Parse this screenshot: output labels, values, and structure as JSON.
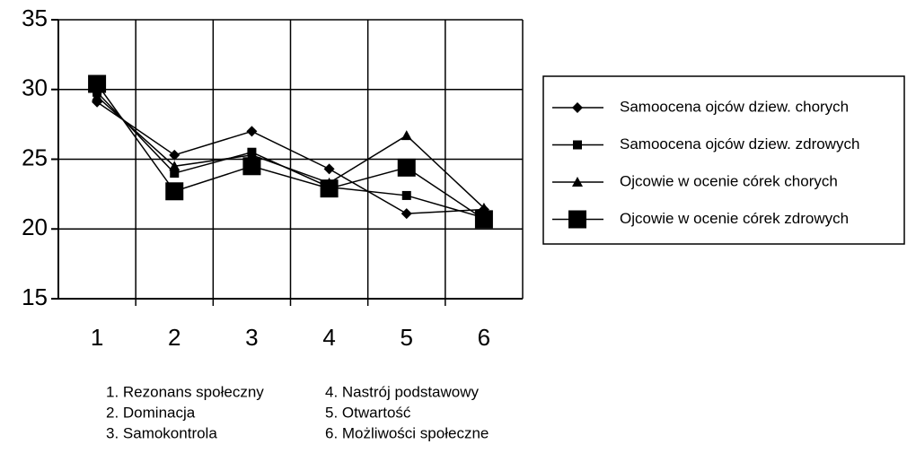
{
  "chart_data": {
    "type": "line",
    "categories": [
      "1",
      "2",
      "3",
      "4",
      "5",
      "6"
    ],
    "series": [
      {
        "name": "Samoocena ojców dziew. chorych",
        "color": "#000000",
        "marker": "diamond",
        "values": [
          29.1,
          25.3,
          27.0,
          24.3,
          21.1,
          21.4
        ]
      },
      {
        "name": "Samoocena ojców dziew. zdrowych",
        "color": "#000000",
        "marker": "square",
        "values": [
          29.8,
          24.0,
          25.5,
          23.0,
          22.4,
          20.8
        ]
      },
      {
        "name": "Ojcowie w ocenie córek chorych",
        "color": "#000000",
        "marker": "triangle",
        "values": [
          29.5,
          24.5,
          25.3,
          23.3,
          26.7,
          21.5
        ]
      },
      {
        "name": "Ojcowie w ocenie córek zdrowych",
        "color": "#000000",
        "marker": "bigsquare",
        "values": [
          30.4,
          22.7,
          24.5,
          22.9,
          24.4,
          20.7
        ]
      }
    ],
    "ylim": [
      15,
      35
    ],
    "yticks": [
      15,
      20,
      25,
      30,
      35
    ],
    "grid": true,
    "legend": "right",
    "notes": [
      "1. Rezonans społeczny",
      "2. Dominacja",
      "3. Samokontrola",
      "4. Nastrój podstawowy",
      "5. Otwartość",
      "6. Możliwości społeczne"
    ]
  }
}
